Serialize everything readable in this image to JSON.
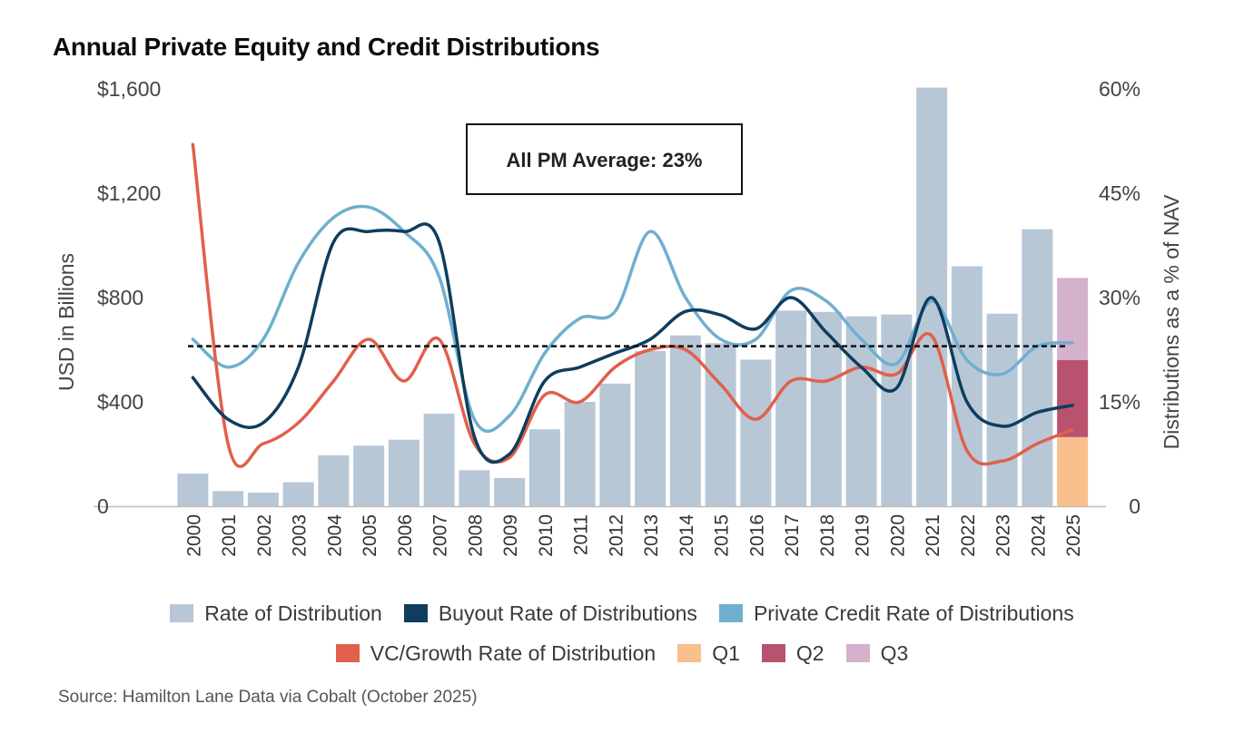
{
  "title": "Annual Private Equity and Credit Distributions",
  "source": "Source: Hamilton Lane Data via Cobalt (October 2025)",
  "annotation": "All PM Average: 23%",
  "colors": {
    "bars": "#b8c7d6",
    "buyout": "#0e3d5e",
    "credit": "#6fafcf",
    "vc": "#e0604b",
    "q1": "#f9bf8c",
    "q2": "#b9526e",
    "q3": "#d4b1cc",
    "average": "#111111"
  },
  "legend": [
    [
      {
        "label": "Rate of Distribution",
        "color": "#b8c7d6",
        "name": "legend-rate-of-distribution"
      },
      {
        "label": "Buyout Rate of Distributions",
        "color": "#0e3d5e",
        "name": "legend-buyout"
      },
      {
        "label": "Private Credit Rate of Distributions",
        "color": "#6fafcf",
        "name": "legend-private-credit"
      }
    ],
    [
      {
        "label": "VC/Growth Rate of Distribution",
        "color": "#e0604b",
        "name": "legend-vc-growth"
      },
      {
        "label": "Q1",
        "color": "#f9bf8c",
        "name": "legend-q1"
      },
      {
        "label": "Q2",
        "color": "#b9526e",
        "name": "legend-q2"
      },
      {
        "label": "Q3",
        "color": "#d4b1cc",
        "name": "legend-q3"
      }
    ]
  ],
  "chart_data": {
    "type": "bar+line",
    "title": "Annual Private Equity and Credit Distributions",
    "categories": [
      "2000",
      "2001",
      "2002",
      "2003",
      "2004",
      "2005",
      "2006",
      "2007",
      "2008",
      "2009",
      "2010",
      "2011",
      "2012",
      "2013",
      "2014",
      "2015",
      "2016",
      "2017",
      "2018",
      "2019",
      "2020",
      "2021",
      "2022",
      "2023",
      "2024",
      "2025"
    ],
    "y_left": {
      "label": "USD in Billions",
      "min": 0,
      "max": 1600,
      "ticks": [
        0,
        400,
        800,
        1200,
        1600
      ],
      "tick_labels": [
        "0",
        "$400",
        "$800",
        "$1,200",
        "$1,600"
      ]
    },
    "y_right": {
      "label": "Distributions as a % of NAV",
      "min": 0,
      "max": 60,
      "ticks": [
        0,
        15,
        30,
        45,
        60
      ],
      "tick_labels": [
        "0",
        "15%",
        "30%",
        "45%",
        "60%"
      ]
    },
    "bars": {
      "name": "Rate of Distribution",
      "axis": "left",
      "values": [
        125,
        58,
        52,
        92,
        195,
        232,
        255,
        355,
        138,
        108,
        295,
        400,
        470,
        595,
        655,
        625,
        562,
        750,
        745,
        728,
        735,
        1605,
        920,
        738,
        1062,
        null
      ]
    },
    "stacked_2025": [
      {
        "name": "Q1",
        "value": 265
      },
      {
        "name": "Q2",
        "value": 295
      },
      {
        "name": "Q3",
        "value": 315
      }
    ],
    "series": [
      {
        "name": "Buyout Rate of Distributions",
        "axis": "right",
        "values": [
          18.5,
          12.5,
          12,
          20,
          38,
          39.5,
          39.5,
          38,
          10,
          7.5,
          18,
          20,
          22,
          24,
          28,
          27.5,
          25.5,
          30,
          25,
          20,
          17,
          30,
          15,
          11.5,
          13.5,
          14.5
        ]
      },
      {
        "name": "Private Credit Rate of Distributions",
        "axis": "right",
        "values": [
          24,
          20,
          24,
          35,
          41.5,
          43,
          39.5,
          33,
          12.5,
          13,
          22,
          27,
          28,
          39.5,
          30,
          24,
          24,
          31,
          29.5,
          24,
          20.5,
          29.5,
          21,
          19,
          23,
          23.5
        ]
      },
      {
        "name": "VC/Growth Rate of Distribution",
        "axis": "right",
        "values": [
          52,
          9,
          9,
          12,
          18,
          24,
          18,
          24,
          9,
          7,
          16,
          15,
          20,
          22.5,
          22.5,
          17.5,
          12.5,
          18,
          18,
          20,
          19,
          24.5,
          8,
          6.5,
          9,
          11
        ]
      }
    ],
    "average": {
      "label": "All PM Average: 23%",
      "value": 23,
      "axis": "right",
      "style": "dashed"
    }
  }
}
